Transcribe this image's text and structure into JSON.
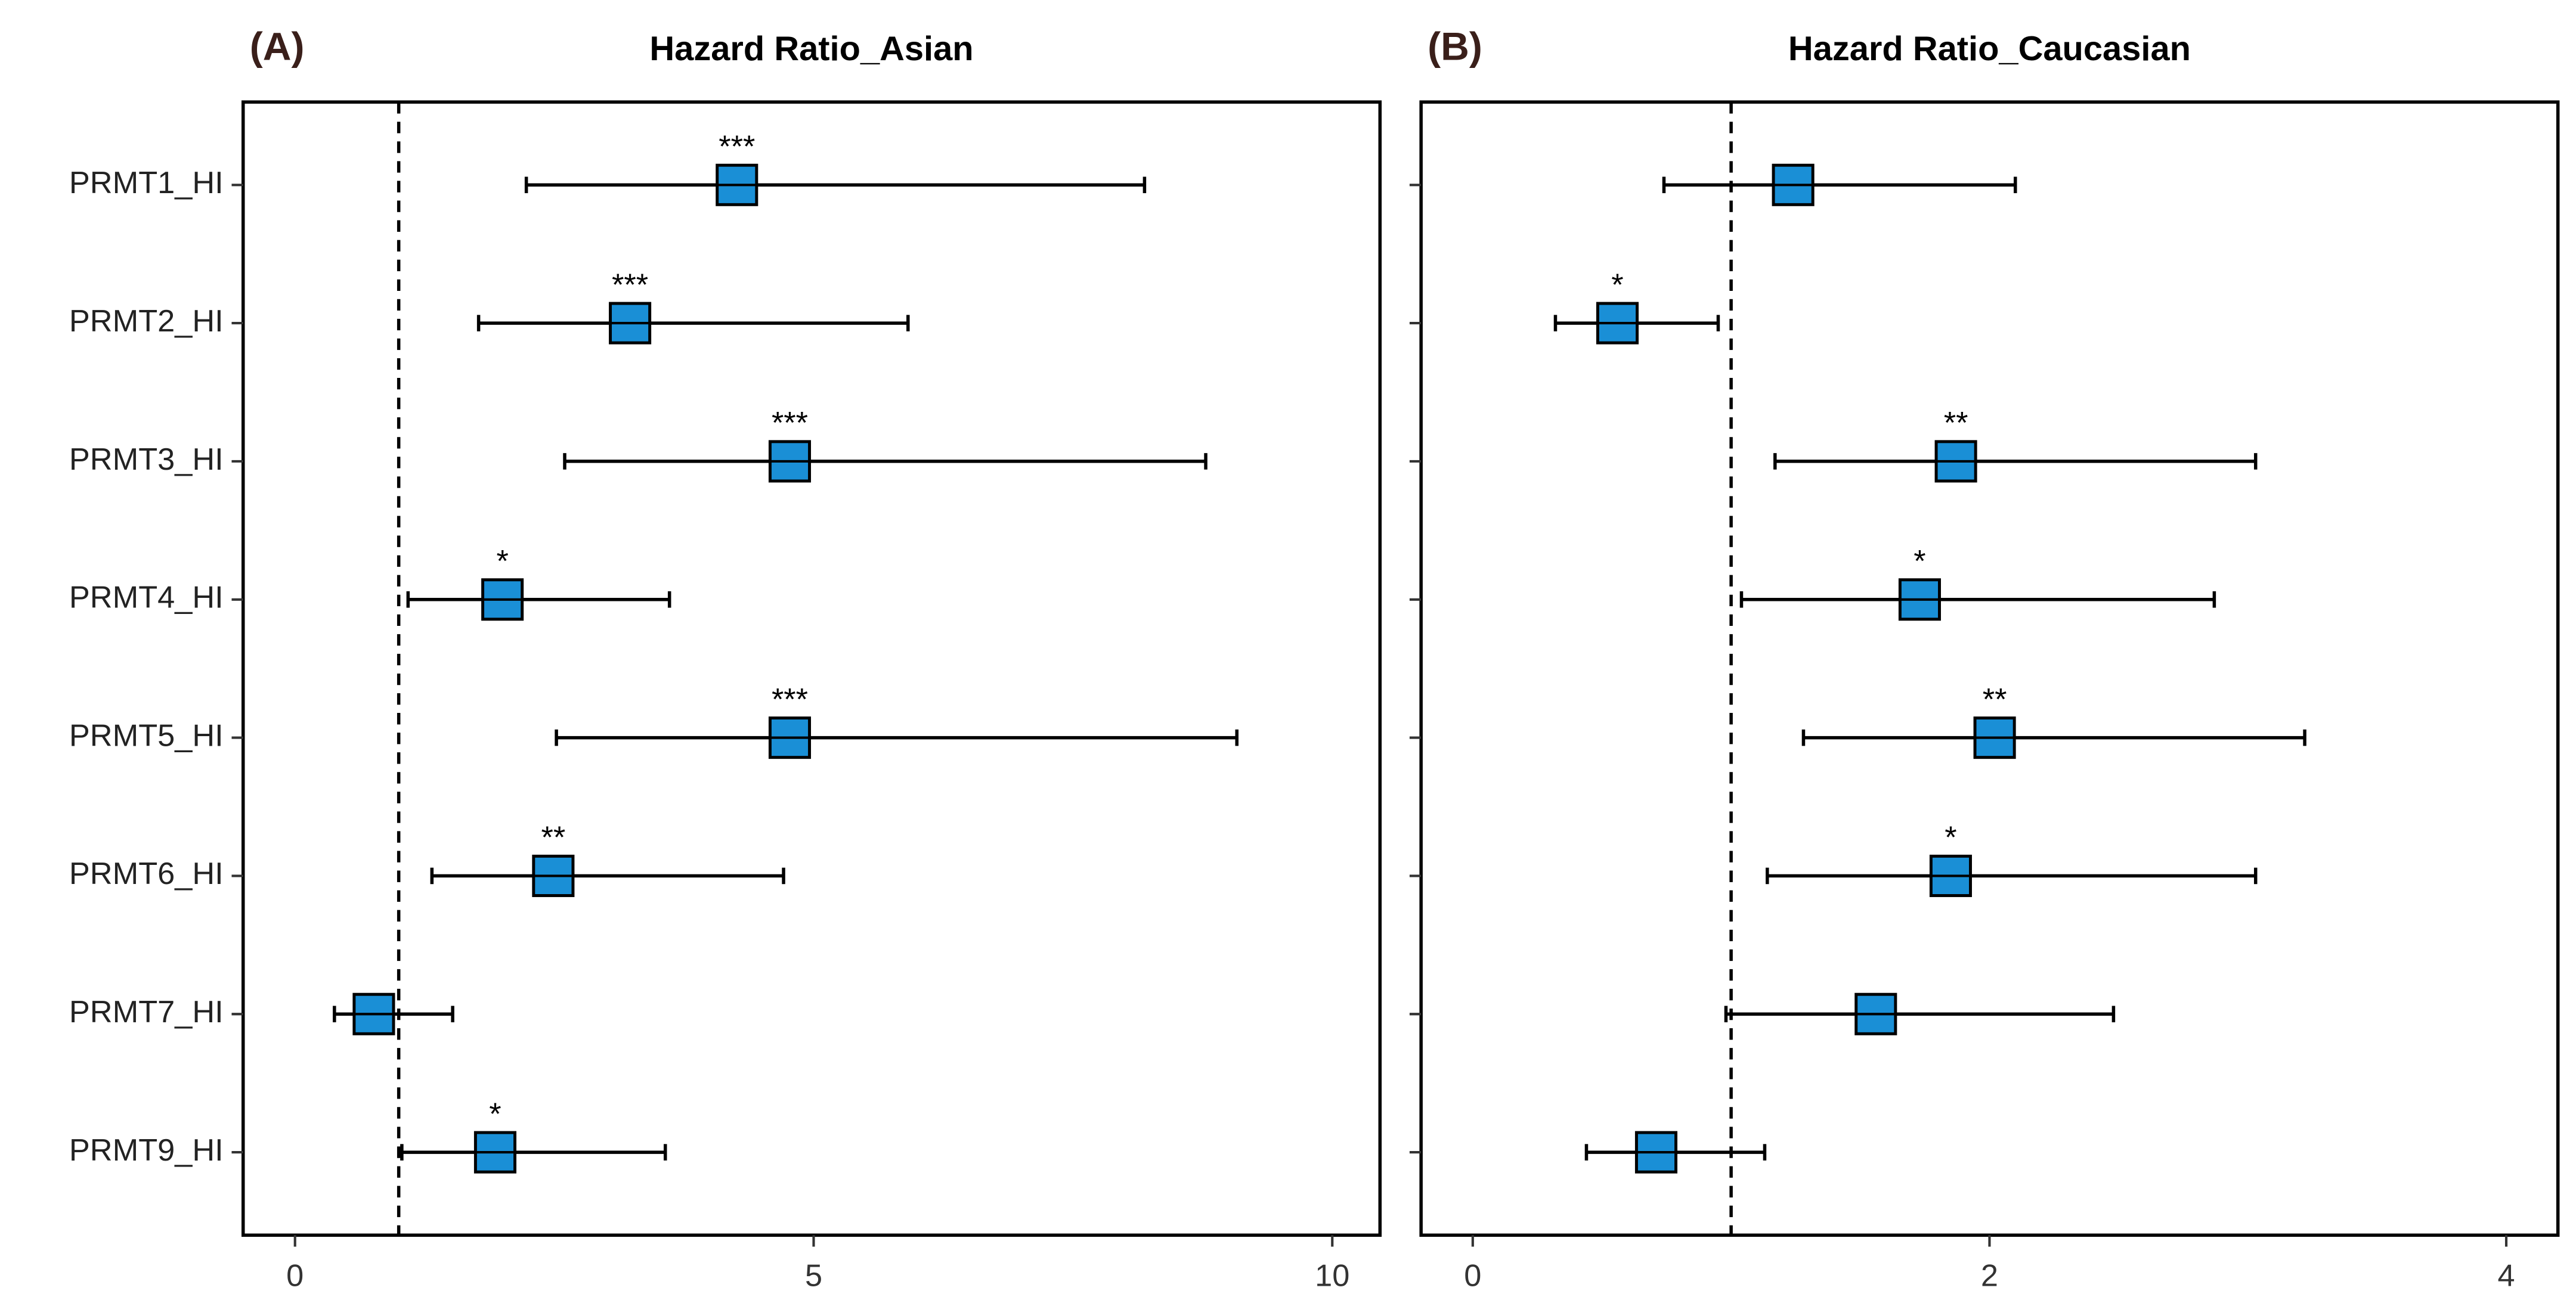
{
  "chart_data": [
    {
      "type": "forest",
      "panel_label": "(A)",
      "title": "Hazard Ratio_Asian",
      "categories": [
        "PRMT1_HI",
        "PRMT2_HI",
        "PRMT3_HI",
        "PRMT4_HI",
        "PRMT5_HI",
        "PRMT6_HI",
        "PRMT7_HI",
        "PRMT9_HI"
      ],
      "values": [
        4.26,
        3.23,
        4.77,
        2.0,
        4.77,
        2.49,
        0.76,
        1.93
      ],
      "lower": [
        2.23,
        1.77,
        2.6,
        1.09,
        2.52,
        1.32,
        0.38,
        1.03
      ],
      "upper": [
        8.19,
        5.91,
        8.78,
        3.61,
        9.08,
        4.71,
        1.52,
        3.57
      ],
      "annotations": [
        "***",
        "***",
        "***",
        "*",
        "***",
        "**",
        null,
        "*"
      ],
      "color": "#1a8fd6",
      "reference_line": 1,
      "xlim": [
        -0.5,
        10.46
      ],
      "xticks": [
        0,
        5,
        10
      ]
    },
    {
      "type": "forest",
      "panel_label": "(B)",
      "title": "Hazard Ratio_Caucasian",
      "values": [
        1.24,
        0.56,
        1.87,
        1.73,
        2.02,
        1.85,
        1.56,
        0.71
      ],
      "lower": [
        0.74,
        0.32,
        1.17,
        1.04,
        1.28,
        1.14,
        0.98,
        0.44
      ],
      "upper": [
        2.1,
        0.95,
        3.03,
        2.87,
        3.22,
        3.03,
        2.48,
        1.13
      ],
      "annotations": [
        null,
        "*",
        "**",
        "*",
        "**",
        "*",
        null,
        null
      ],
      "color": "#1a8fd6",
      "reference_line": 1,
      "xlim": [
        -0.2,
        4.2
      ],
      "xticks": [
        0,
        2,
        4
      ]
    }
  ]
}
